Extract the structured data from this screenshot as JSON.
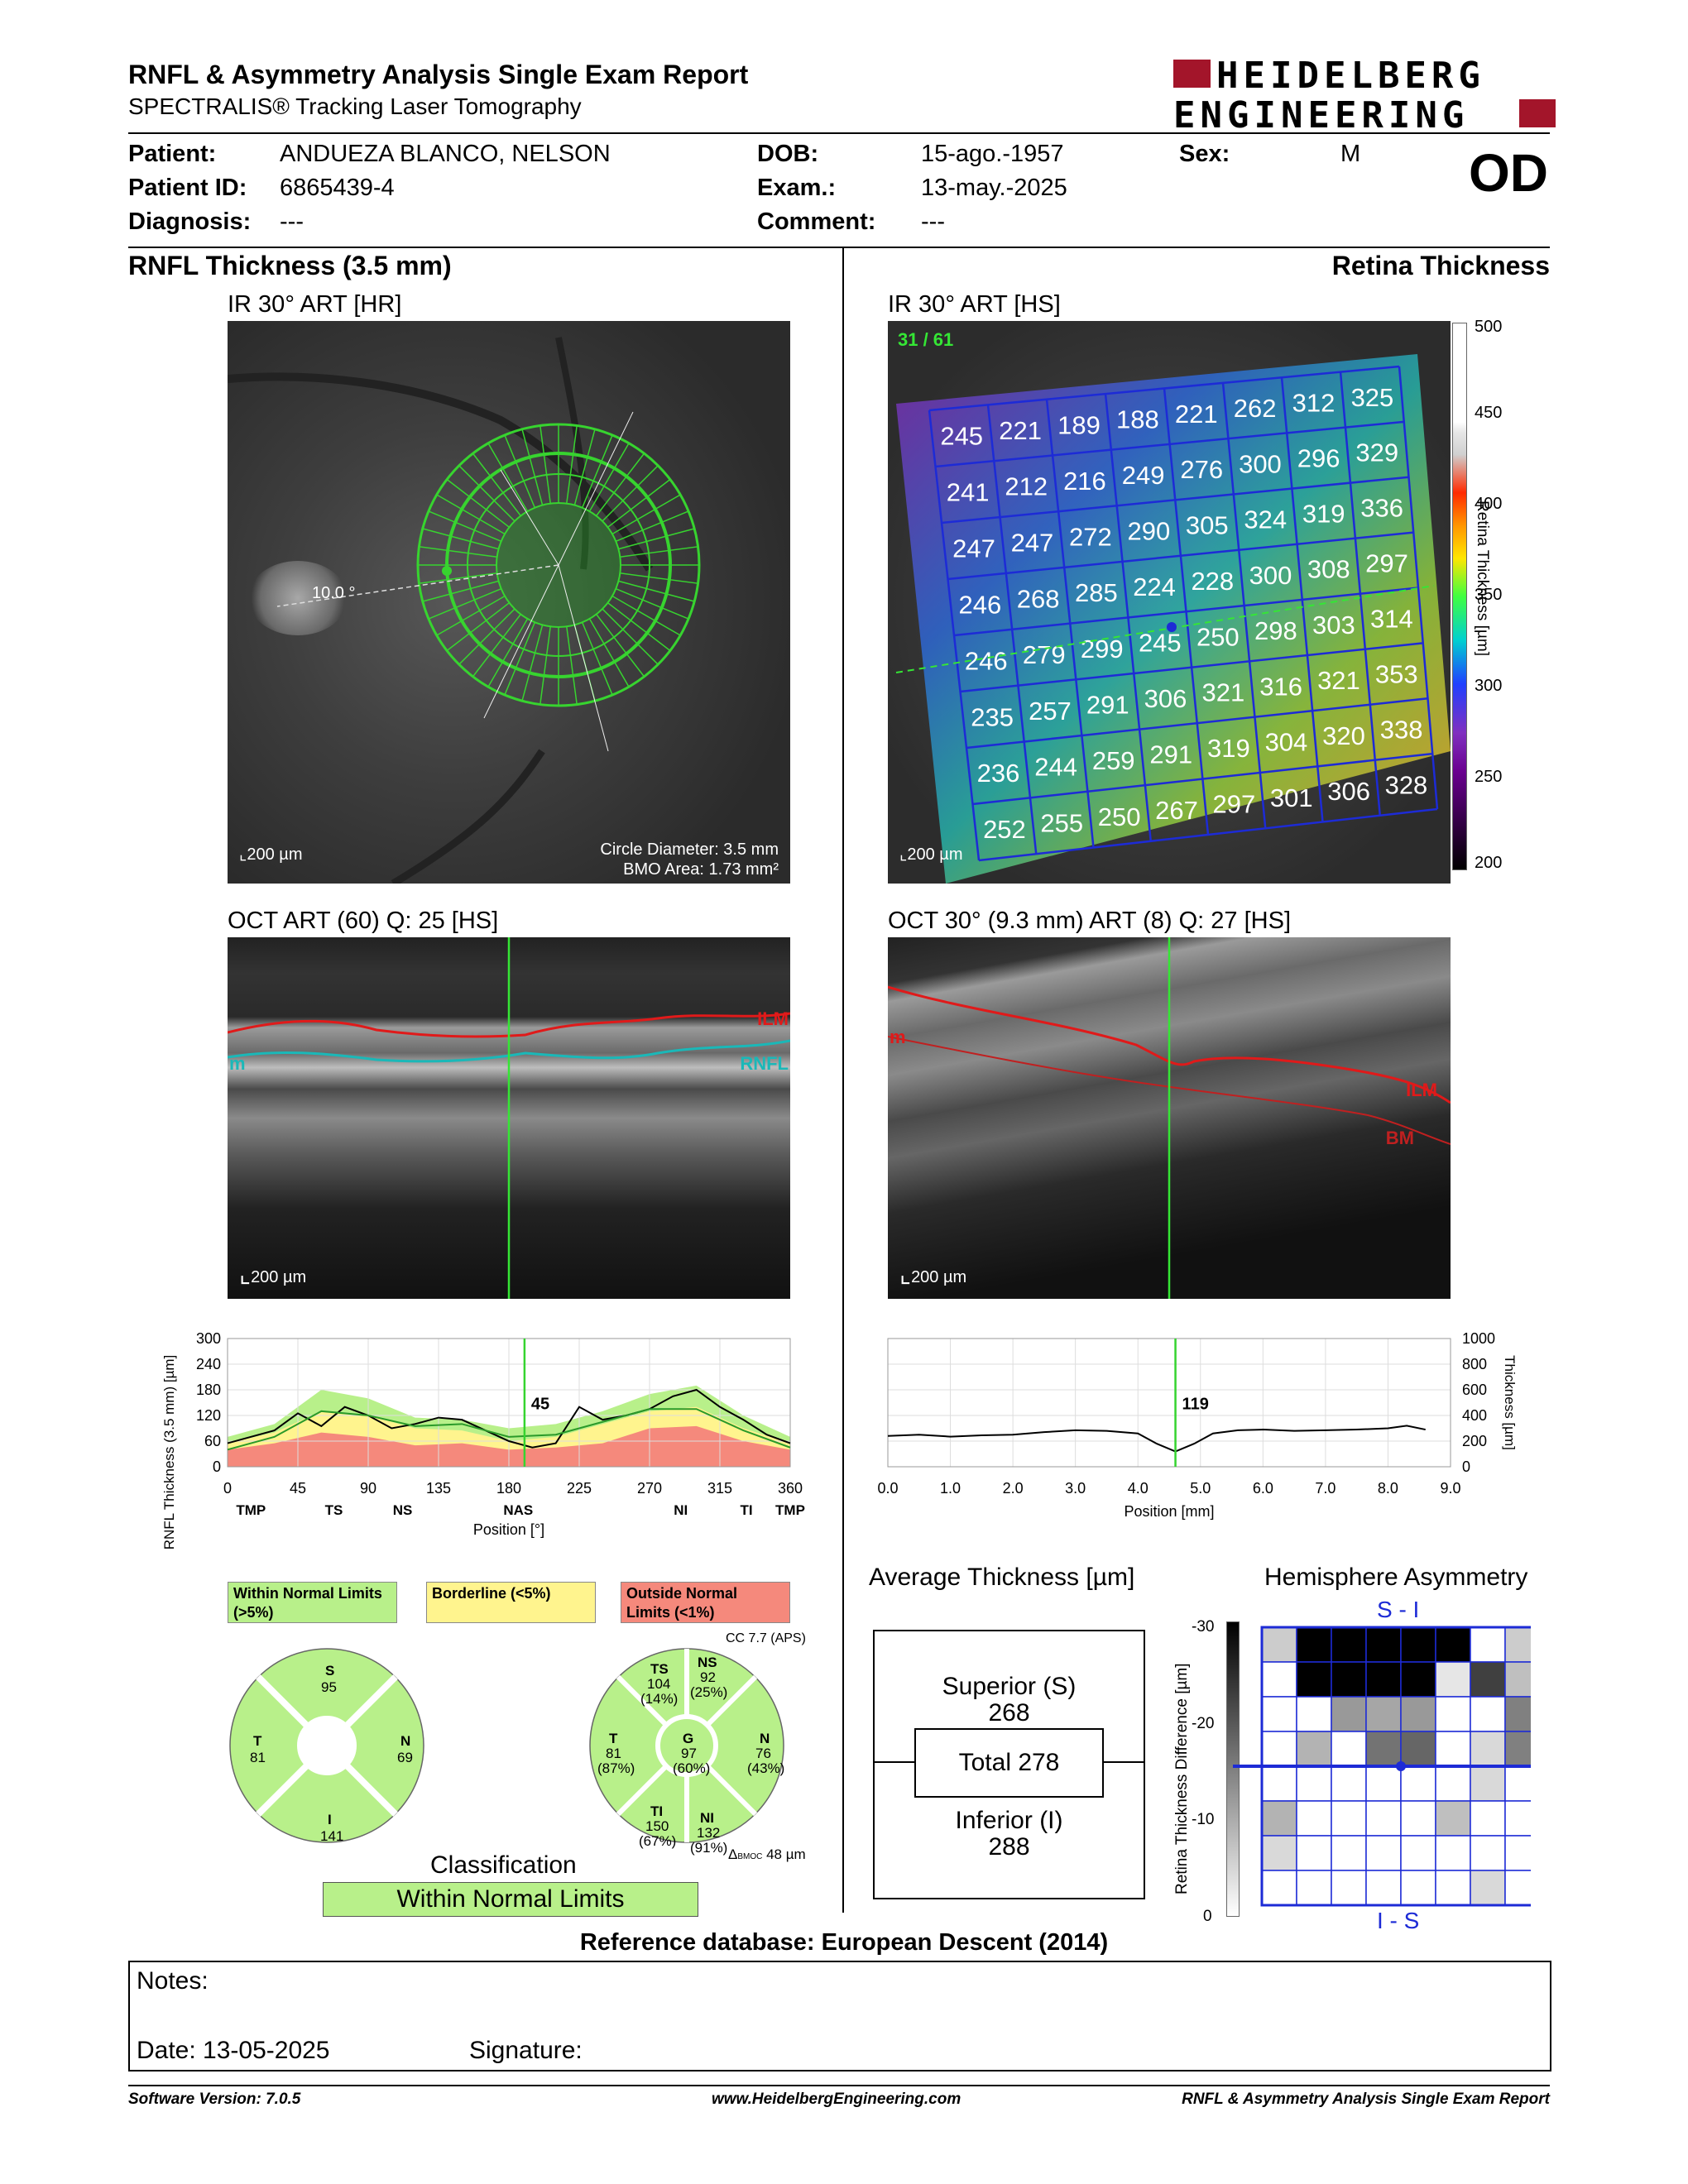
{
  "header": {
    "title": "RNFL & Asymmetry Analysis Single Exam Report",
    "subtitle": "SPECTRALIS® Tracking Laser Tomography",
    "logo_line1": "HEIDELBERG",
    "logo_line2": "ENGINEERING"
  },
  "patient": {
    "patient_label": "Patient:",
    "patient_value": "ANDUEZA BLANCO, NELSON",
    "id_label": "Patient ID:",
    "id_value": "6865439-4",
    "diagnosis_label": "Diagnosis:",
    "diagnosis_value": "---",
    "dob_label": "DOB:",
    "dob_value": "15-ago.-1957",
    "exam_label": "Exam.:",
    "exam_value": "13-may.-2025",
    "comment_label": "Comment:",
    "comment_value": "---",
    "sex_label": "Sex:",
    "sex_value": "M",
    "eye": "OD"
  },
  "left": {
    "section_title": "RNFL Thickness (3.5 mm)",
    "ir_title": "IR 30° ART [HR]",
    "ir_angle": "10.0 °",
    "ir_scale": "200 µm",
    "ir_circle_diameter": "Circle Diameter: 3.5 mm",
    "ir_bmo_area": "BMO Area: 1.73 mm²",
    "oct_title": "OCT ART (60) Q: 25 [HS]",
    "oct_ilm": "ILM",
    "oct_rnfl": "RNFL",
    "oct_m": "m",
    "oct_scale": "200 µm"
  },
  "right": {
    "section_title": "Retina Thickness",
    "ir_title": "IR 30° ART [HS]",
    "ir_counter": "31 / 61",
    "ir_scale": "200 µm",
    "colorbar_ticks": [
      "500",
      "450",
      "400",
      "350",
      "300",
      "250",
      "200"
    ],
    "colorbar_label": "Retina Thickness [µm]",
    "grid_values": [
      [
        "245",
        "221",
        "189",
        "188",
        "221",
        "262",
        "312",
        "325"
      ],
      [
        "241",
        "212",
        "216",
        "249",
        "276",
        "300",
        "296",
        "329"
      ],
      [
        "247",
        "247",
        "272",
        "290",
        "305",
        "324",
        "319",
        "336"
      ],
      [
        "246",
        "268",
        "285",
        "224",
        "228",
        "300",
        "308",
        "297"
      ],
      [
        "246",
        "279",
        "299",
        "245",
        "250",
        "298",
        "303",
        "314"
      ],
      [
        "235",
        "257",
        "291",
        "306",
        "321",
        "316",
        "321",
        "353"
      ],
      [
        "236",
        "244",
        "259",
        "291",
        "319",
        "304",
        "320",
        "338"
      ],
      [
        "252",
        "255",
        "250",
        "267",
        "297",
        "301",
        "306",
        "328"
      ]
    ],
    "oct_title": "OCT 30° (9.3 mm) ART (8) Q: 27 [HS]",
    "oct_m": "m",
    "oct_ilm": "ILM",
    "oct_bm": "BM",
    "oct_scale": "200 µm"
  },
  "chart_data": [
    {
      "type": "line",
      "title": "",
      "xlabel": "Position [°]",
      "ylabel": "RNFL Thickness (3.5 mm) [µm]",
      "xlim": [
        0,
        360
      ],
      "ylim": [
        0,
        300
      ],
      "x_ticks": [
        "0",
        "45",
        "90",
        "135",
        "180",
        "225",
        "270",
        "315",
        "360"
      ],
      "y_ticks": [
        "0",
        "60",
        "120",
        "180",
        "240",
        "300"
      ],
      "sector_labels": [
        "TMP",
        "TS",
        "NS",
        "NAS",
        "NI",
        "TI",
        "TMP"
      ],
      "cursor_value": "45",
      "cursor_x": 190,
      "series": [
        {
          "name": "",
          "color": "#000000",
          "x": [
            0,
            15,
            30,
            45,
            60,
            75,
            90,
            105,
            120,
            135,
            150,
            165,
            180,
            195,
            210,
            225,
            240,
            255,
            270,
            285,
            300,
            315,
            330,
            345,
            360
          ],
          "values": [
            55,
            70,
            85,
            125,
            95,
            140,
            120,
            90,
            100,
            115,
            110,
            85,
            60,
            45,
            55,
            140,
            110,
            120,
            135,
            165,
            180,
            140,
            110,
            75,
            55
          ]
        },
        {
          "name": "",
          "color": "#2a9a2a",
          "x": [
            0,
            30,
            60,
            90,
            120,
            150,
            180,
            210,
            240,
            270,
            300,
            330,
            360
          ],
          "values": [
            40,
            70,
            130,
            120,
            95,
            100,
            70,
            75,
            105,
            135,
            135,
            85,
            45
          ]
        }
      ],
      "bands": {
        "outside_normal_max": [
          40,
          55,
          80,
          70,
          50,
          55,
          40,
          45,
          55,
          90,
          95,
          60,
          40
        ],
        "borderline_max": [
          55,
          80,
          130,
          120,
          90,
          85,
          60,
          70,
          100,
          130,
          140,
          90,
          55
        ],
        "within_normal_max": [
          70,
          100,
          180,
          160,
          115,
          110,
          90,
          100,
          130,
          170,
          190,
          120,
          70
        ],
        "x": [
          0,
          30,
          60,
          90,
          120,
          150,
          180,
          210,
          240,
          270,
          300,
          330,
          360
        ]
      }
    },
    {
      "type": "line",
      "title": "",
      "xlabel": "Position [mm]",
      "ylabel": "Thickness [µm]",
      "xlim": [
        0,
        9
      ],
      "ylim": [
        0,
        1000
      ],
      "x_ticks": [
        "0.0",
        "1.0",
        "2.0",
        "3.0",
        "4.0",
        "5.0",
        "6.0",
        "7.0",
        "8.0",
        "9.0"
      ],
      "y_ticks": [
        "0",
        "200",
        "400",
        "600",
        "800",
        "1000"
      ],
      "cursor_value": "119",
      "cursor_x": 4.6,
      "series": [
        {
          "name": "",
          "color": "#000000",
          "x": [
            0,
            0.5,
            1,
            1.5,
            2,
            2.5,
            3,
            3.5,
            4,
            4.3,
            4.6,
            4.9,
            5.2,
            5.6,
            6,
            6.5,
            7,
            7.5,
            8,
            8.3,
            8.6
          ],
          "values": [
            240,
            250,
            235,
            245,
            250,
            270,
            285,
            280,
            260,
            180,
            119,
            180,
            260,
            285,
            290,
            280,
            285,
            290,
            300,
            320,
            290
          ]
        }
      ]
    }
  ],
  "legend": {
    "within": "Within Normal Limits (>5%)",
    "borderline": "Borderline (<5%)",
    "outside": "Outside Normal Limits (<1%)",
    "within_color": "#b8f08a",
    "borderline_color": "#fff48e",
    "outside_color": "#f5897c"
  },
  "sectors_simple": {
    "S_label": "S",
    "S_value": "95",
    "T_label": "T",
    "T_value": "81",
    "N_label": "N",
    "N_value": "69",
    "I_label": "I",
    "I_value": "141"
  },
  "sectors_detail": {
    "cc": "CC 7.7 (APS)",
    "TS_label": "TS",
    "TS_value": "104",
    "TS_pct": "(14%)",
    "NS_label": "NS",
    "NS_value": "92",
    "NS_pct": "(25%)",
    "T_label": "T",
    "T_value": "81",
    "T_pct": "(87%)",
    "G_label": "G",
    "G_value": "97",
    "G_pct": "(60%)",
    "N_label": "N",
    "N_value": "76",
    "N_pct": "(43%)",
    "TI_label": "TI",
    "TI_value": "150",
    "TI_pct": "(67%)",
    "NI_label": "NI",
    "NI_value": "132",
    "NI_pct": "(91%)",
    "bmoc_symbol": "Δ",
    "bmoc_sub": "BMOC",
    "bmoc_value": "48 µm"
  },
  "classification": {
    "title": "Classification",
    "value": "Within Normal Limits"
  },
  "average_thickness": {
    "title": "Average Thickness [µm]",
    "superior_label": "Superior (S)",
    "superior_value": "268",
    "total": "Total 278",
    "inferior_label": "Inferior (I)",
    "inferior_value": "288"
  },
  "asymmetry": {
    "title": "Hemisphere Asymmetry",
    "top_label": "S - I",
    "bottom_label": "I - S",
    "scale_label": "Retina Thickness Difference [µm]",
    "scale_ticks": [
      "-30",
      "-20",
      "-10",
      "0"
    ],
    "cells": [
      [
        0.2,
        1,
        1,
        1,
        1,
        1,
        0,
        0.2
      ],
      [
        0,
        1,
        1,
        1,
        1,
        0.1,
        0.75,
        0.25
      ],
      [
        0,
        0,
        0.4,
        0.35,
        0.4,
        0,
        0,
        0.5
      ],
      [
        0,
        0.3,
        0,
        0.55,
        0.6,
        0,
        0.15,
        0.5
      ],
      [
        0,
        0,
        0,
        0,
        0,
        0,
        0.15,
        0
      ],
      [
        0.3,
        0,
        0,
        0,
        0,
        0.25,
        0,
        0
      ],
      [
        0.15,
        0,
        0,
        0,
        0,
        0,
        0,
        0
      ],
      [
        0,
        0,
        0,
        0,
        0,
        0,
        0.15,
        0
      ]
    ]
  },
  "reference": "Reference database: European Descent (2014)",
  "notes": {
    "notes_label": "Notes:",
    "date_label": "Date: 13-05-2025",
    "signature_label": "Signature:"
  },
  "footer": {
    "software": "Software Version: 7.0.5",
    "website": "www.HeidelbergEngineering.com",
    "report": "RNFL & Asymmetry Analysis Single Exam Report"
  }
}
